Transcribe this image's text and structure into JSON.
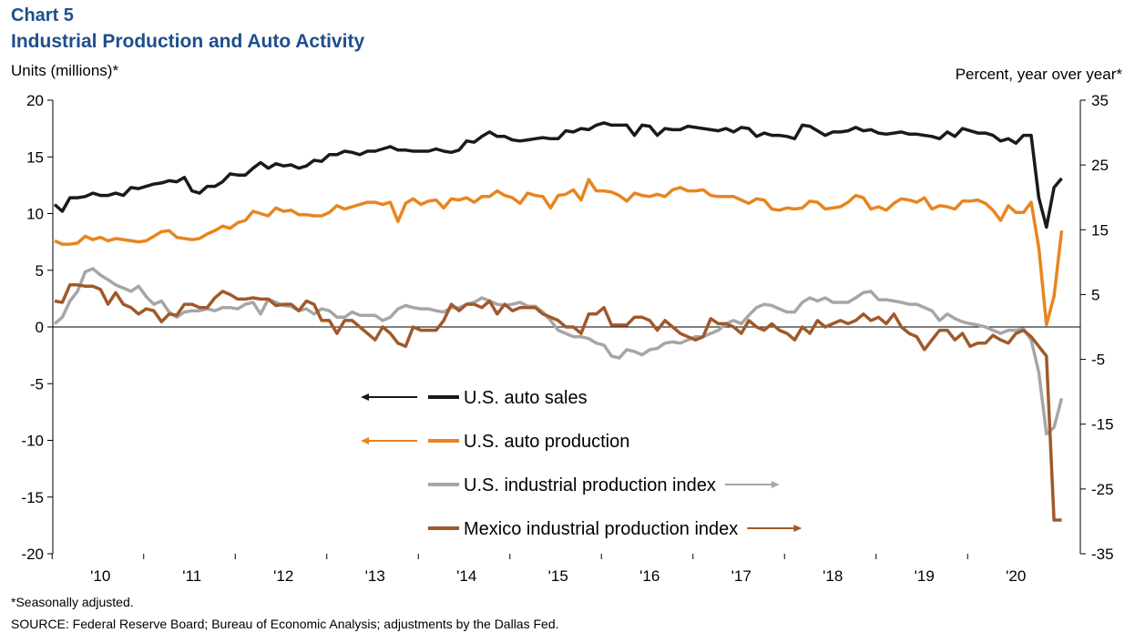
{
  "header": {
    "chart_number": "Chart 5",
    "title": "Industrial Production and Auto Activity",
    "left_unit": "Units  (millions)*",
    "right_unit": "Percent, year over year*"
  },
  "footer": {
    "note": "*Seasonally adjusted.",
    "source": "SOURCE:  Federal Reserve Board; Bureau of Economic Analysis; adjustments  by the Dallas Fed."
  },
  "colors": {
    "auto_sales": "#1a1a1a",
    "auto_production": "#e8851e",
    "us_ip": "#a6a6a6",
    "mexico_ip": "#a0592a"
  },
  "chart_data": {
    "type": "line",
    "x_start": "2009-07",
    "x_frequency": "monthly",
    "x_ticks": [
      "'10",
      "'11",
      "'12",
      "'13",
      "'14",
      "'15",
      "'16",
      "'17",
      "'18",
      "'19",
      "'20"
    ],
    "left_axis": {
      "ylim": [
        -20,
        20
      ],
      "ticks": [
        "20",
        "15",
        "10",
        "5",
        "0",
        "-5",
        "-10",
        "-15",
        "-20"
      ]
    },
    "right_axis": {
      "ylim": [
        -35,
        35
      ],
      "ticks": [
        "35",
        "25",
        "15",
        "5",
        "-5",
        "-15",
        "-25",
        "-35"
      ]
    },
    "legend": [
      {
        "label": "U.S. auto sales",
        "axis": "left"
      },
      {
        "label": "U.S. auto production",
        "axis": "left"
      },
      {
        "label": "U.S. industrial production index",
        "axis": "right"
      },
      {
        "label": "Mexico industrial production index",
        "axis": "right"
      }
    ],
    "series": [
      {
        "name": "U.S. auto sales",
        "axis": "left",
        "values": [
          10.8,
          10.2,
          11.4,
          11.4,
          11.5,
          11.8,
          11.6,
          11.6,
          11.8,
          11.6,
          12.3,
          12.2,
          12.4,
          12.6,
          12.7,
          12.9,
          12.8,
          13.2,
          12.0,
          11.8,
          12.4,
          12.4,
          12.8,
          13.5,
          13.4,
          13.4,
          14.0,
          14.5,
          14.0,
          14.4,
          14.2,
          14.3,
          14.0,
          14.2,
          14.7,
          14.6,
          15.2,
          15.2,
          15.5,
          15.4,
          15.2,
          15.5,
          15.5,
          15.7,
          15.9,
          15.6,
          15.6,
          15.5,
          15.5,
          15.5,
          15.7,
          15.5,
          15.4,
          15.6,
          16.4,
          16.3,
          16.8,
          17.2,
          16.8,
          16.8,
          16.5,
          16.4,
          16.5,
          16.6,
          16.7,
          16.6,
          16.6,
          17.3,
          17.2,
          17.5,
          17.4,
          17.8,
          18.0,
          17.8,
          17.8,
          17.8,
          16.9,
          17.8,
          17.7,
          16.9,
          17.5,
          17.4,
          17.4,
          17.7,
          17.6,
          17.5,
          17.4,
          17.3,
          17.5,
          17.2,
          17.6,
          17.5,
          16.8,
          17.1,
          16.9,
          16.9,
          16.8,
          16.6,
          17.8,
          17.7,
          17.3,
          16.9,
          17.2,
          17.2,
          17.3,
          17.6,
          17.3,
          17.4,
          17.1,
          17.0,
          17.1,
          17.2,
          17.0,
          17.0,
          16.9,
          16.8,
          16.6,
          17.2,
          16.8,
          17.5,
          17.3,
          17.1,
          17.1,
          16.9,
          16.4,
          16.6,
          16.2,
          16.9,
          16.9,
          11.4,
          8.8,
          12.3,
          13.1
        ]
      },
      {
        "name": "U.S. auto production",
        "axis": "left",
        "values": [
          7.6,
          7.3,
          7.3,
          7.4,
          8.0,
          7.7,
          7.9,
          7.6,
          7.8,
          7.7,
          7.6,
          7.5,
          7.6,
          8.0,
          8.4,
          8.5,
          7.9,
          7.8,
          7.7,
          7.8,
          8.2,
          8.5,
          8.9,
          8.7,
          9.2,
          9.4,
          10.2,
          10.0,
          9.8,
          10.5,
          10.2,
          10.3,
          9.9,
          9.9,
          9.8,
          9.8,
          10.1,
          10.7,
          10.4,
          10.6,
          10.8,
          11.0,
          11.0,
          10.8,
          11.0,
          9.3,
          10.9,
          11.3,
          10.8,
          11.1,
          11.2,
          10.5,
          11.3,
          11.2,
          11.4,
          11.0,
          11.5,
          11.5,
          12.0,
          11.6,
          11.4,
          10.9,
          11.8,
          11.6,
          11.5,
          10.5,
          11.6,
          11.7,
          12.1,
          11.2,
          13.0,
          12.0,
          12.0,
          11.9,
          11.6,
          11.1,
          11.8,
          11.6,
          11.5,
          11.7,
          11.5,
          12.1,
          12.3,
          12.0,
          12.0,
          12.1,
          11.6,
          11.5,
          11.5,
          11.5,
          11.2,
          10.9,
          11.3,
          11.2,
          10.4,
          10.3,
          10.5,
          10.4,
          10.5,
          11.1,
          11.0,
          10.4,
          10.5,
          10.6,
          11.0,
          11.6,
          11.4,
          10.4,
          10.6,
          10.3,
          10.9,
          11.3,
          11.2,
          11.0,
          11.4,
          10.4,
          10.7,
          10.6,
          10.4,
          11.1,
          11.1,
          11.2,
          10.9,
          10.3,
          9.4,
          10.7,
          10.1,
          10.1,
          11.0,
          7.0,
          0.2,
          2.7,
          8.5
        ]
      },
      {
        "name": "U.S. industrial production index",
        "axis": "right",
        "values": [
          0.5,
          1.5,
          4.0,
          5.5,
          8.5,
          9.0,
          8.0,
          7.3,
          6.5,
          6.0,
          5.5,
          6.3,
          4.7,
          3.5,
          4.0,
          2.3,
          1.5,
          2.3,
          2.5,
          2.5,
          2.8,
          2.5,
          3.0,
          3.0,
          2.8,
          3.5,
          3.8,
          2.0,
          4.3,
          3.8,
          3.3,
          3.2,
          2.5,
          2.8,
          2.0,
          2.8,
          2.5,
          1.5,
          1.5,
          2.3,
          1.8,
          1.8,
          1.8,
          1.0,
          1.5,
          2.8,
          3.3,
          3.0,
          2.8,
          2.8,
          2.5,
          2.3,
          3.0,
          3.0,
          3.5,
          3.8,
          4.5,
          4.0,
          3.5,
          3.3,
          3.5,
          3.8,
          3.2,
          3.2,
          2.3,
          1.0,
          -0.5,
          -1.0,
          -1.5,
          -1.5,
          -1.8,
          -2.5,
          -2.8,
          -4.5,
          -4.8,
          -3.5,
          -3.8,
          -4.3,
          -3.5,
          -3.3,
          -2.5,
          -2.3,
          -2.5,
          -2.0,
          -1.5,
          -1.5,
          -1.0,
          -0.5,
          0.5,
          1.0,
          0.5,
          1.8,
          3.0,
          3.5,
          3.3,
          2.8,
          2.3,
          2.3,
          3.8,
          4.5,
          4.0,
          4.5,
          3.8,
          3.8,
          3.8,
          4.5,
          5.3,
          5.5,
          4.2,
          4.2,
          4.0,
          3.8,
          3.5,
          3.5,
          3.0,
          2.5,
          1.0,
          2.0,
          1.3,
          0.8,
          0.5,
          0.3,
          0.0,
          -0.5,
          -1.0,
          -0.5,
          -0.5,
          -0.3,
          -2.0,
          -7.0,
          -16.5,
          -15.5,
          -11.0
        ]
      },
      {
        "name": "Mexico industrial production index",
        "axis": "right",
        "values": [
          4.0,
          3.8,
          6.5,
          6.5,
          6.3,
          6.3,
          5.8,
          3.5,
          5.3,
          3.5,
          3.0,
          2.0,
          2.8,
          2.5,
          0.8,
          2.0,
          1.8,
          3.5,
          3.5,
          3.0,
          3.0,
          4.5,
          5.5,
          5.0,
          4.3,
          4.3,
          4.5,
          4.3,
          4.3,
          3.3,
          3.5,
          3.5,
          2.5,
          4.0,
          3.5,
          1.0,
          1.0,
          -1.0,
          1.0,
          1.0,
          0.0,
          -1.0,
          -2.0,
          0.0,
          -1.0,
          -2.5,
          -3.0,
          0.0,
          -0.5,
          -0.5,
          -0.5,
          1.0,
          3.5,
          2.5,
          3.5,
          3.5,
          3.0,
          4.0,
          2.0,
          3.5,
          2.5,
          3.0,
          3.0,
          3.0,
          2.0,
          1.5,
          1.0,
          0.0,
          0.0,
          -1.0,
          2.0,
          2.0,
          3.0,
          0.3,
          0.3,
          0.3,
          1.5,
          1.5,
          1.0,
          -0.5,
          1.0,
          0.0,
          -1.0,
          -1.5,
          -2.0,
          -1.5,
          1.3,
          0.5,
          0.5,
          0.0,
          -1.0,
          1.0,
          0.0,
          -0.5,
          0.5,
          -0.5,
          -1.0,
          -2.0,
          0.0,
          -1.0,
          1.0,
          0.0,
          0.5,
          1.0,
          0.5,
          1.0,
          2.0,
          1.0,
          1.5,
          0.5,
          2.0,
          0.0,
          -1.0,
          -1.5,
          -3.5,
          -2.0,
          -0.5,
          -0.5,
          -2.0,
          -1.0,
          -3.0,
          -2.5,
          -2.5,
          -1.3,
          -2.0,
          -2.5,
          -1.0,
          -0.5,
          -1.5,
          -3.0,
          -4.5,
          -29.8,
          -29.8
        ]
      }
    ]
  }
}
